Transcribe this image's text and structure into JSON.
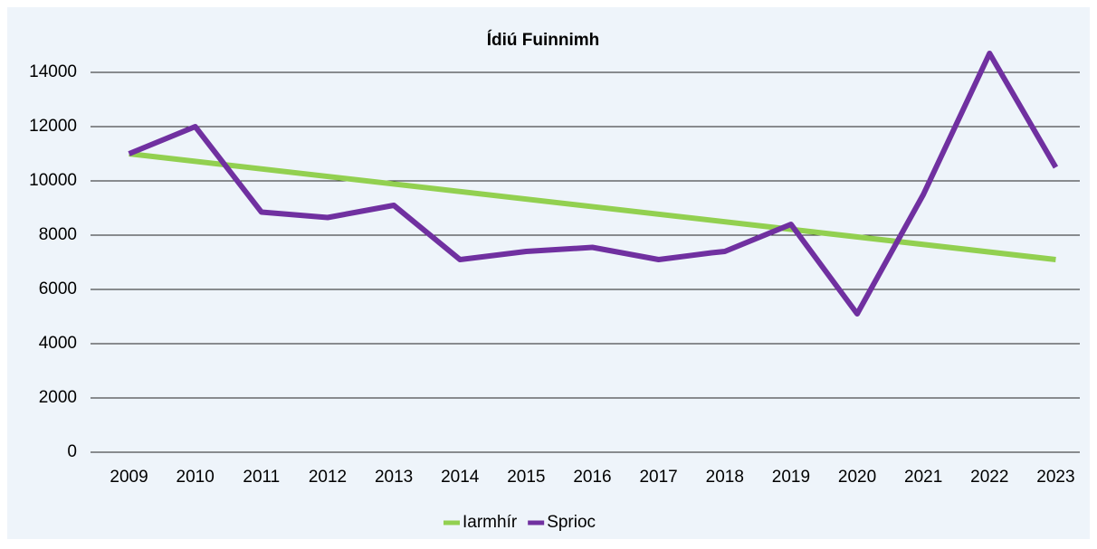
{
  "chart_data": {
    "type": "line",
    "title": "Ídiú Fuinnimh",
    "xlim": [
      2008.5,
      2023.5
    ],
    "xticks": [
      2009,
      2010,
      2011,
      2012,
      2013,
      2014,
      2015,
      2016,
      2017,
      2018,
      2019,
      2020,
      2021,
      2022,
      2023
    ],
    "ylim": [
      0,
      15000
    ],
    "yticks": [
      0,
      2000,
      4000,
      6000,
      8000,
      10000,
      12000,
      14000
    ],
    "grid": true,
    "legend": "bottom",
    "series": [
      {
        "name": "Iarmhír",
        "color": "#92d050",
        "x": [
          2009,
          2023
        ],
        "values": [
          11000,
          7100
        ]
      },
      {
        "name": "Sprioc",
        "color": "#7030a0",
        "x": [
          2009,
          2010,
          2011,
          2012,
          2013,
          2014,
          2015,
          2016,
          2017,
          2017.8,
          2018,
          2019,
          2020,
          2021,
          2022,
          2023
        ],
        "values": [
          11000,
          12000,
          8850,
          8650,
          9100,
          7100,
          7400,
          7550,
          7100,
          7350,
          7400,
          8400,
          5100,
          9500,
          14700,
          10500
        ]
      }
    ]
  }
}
